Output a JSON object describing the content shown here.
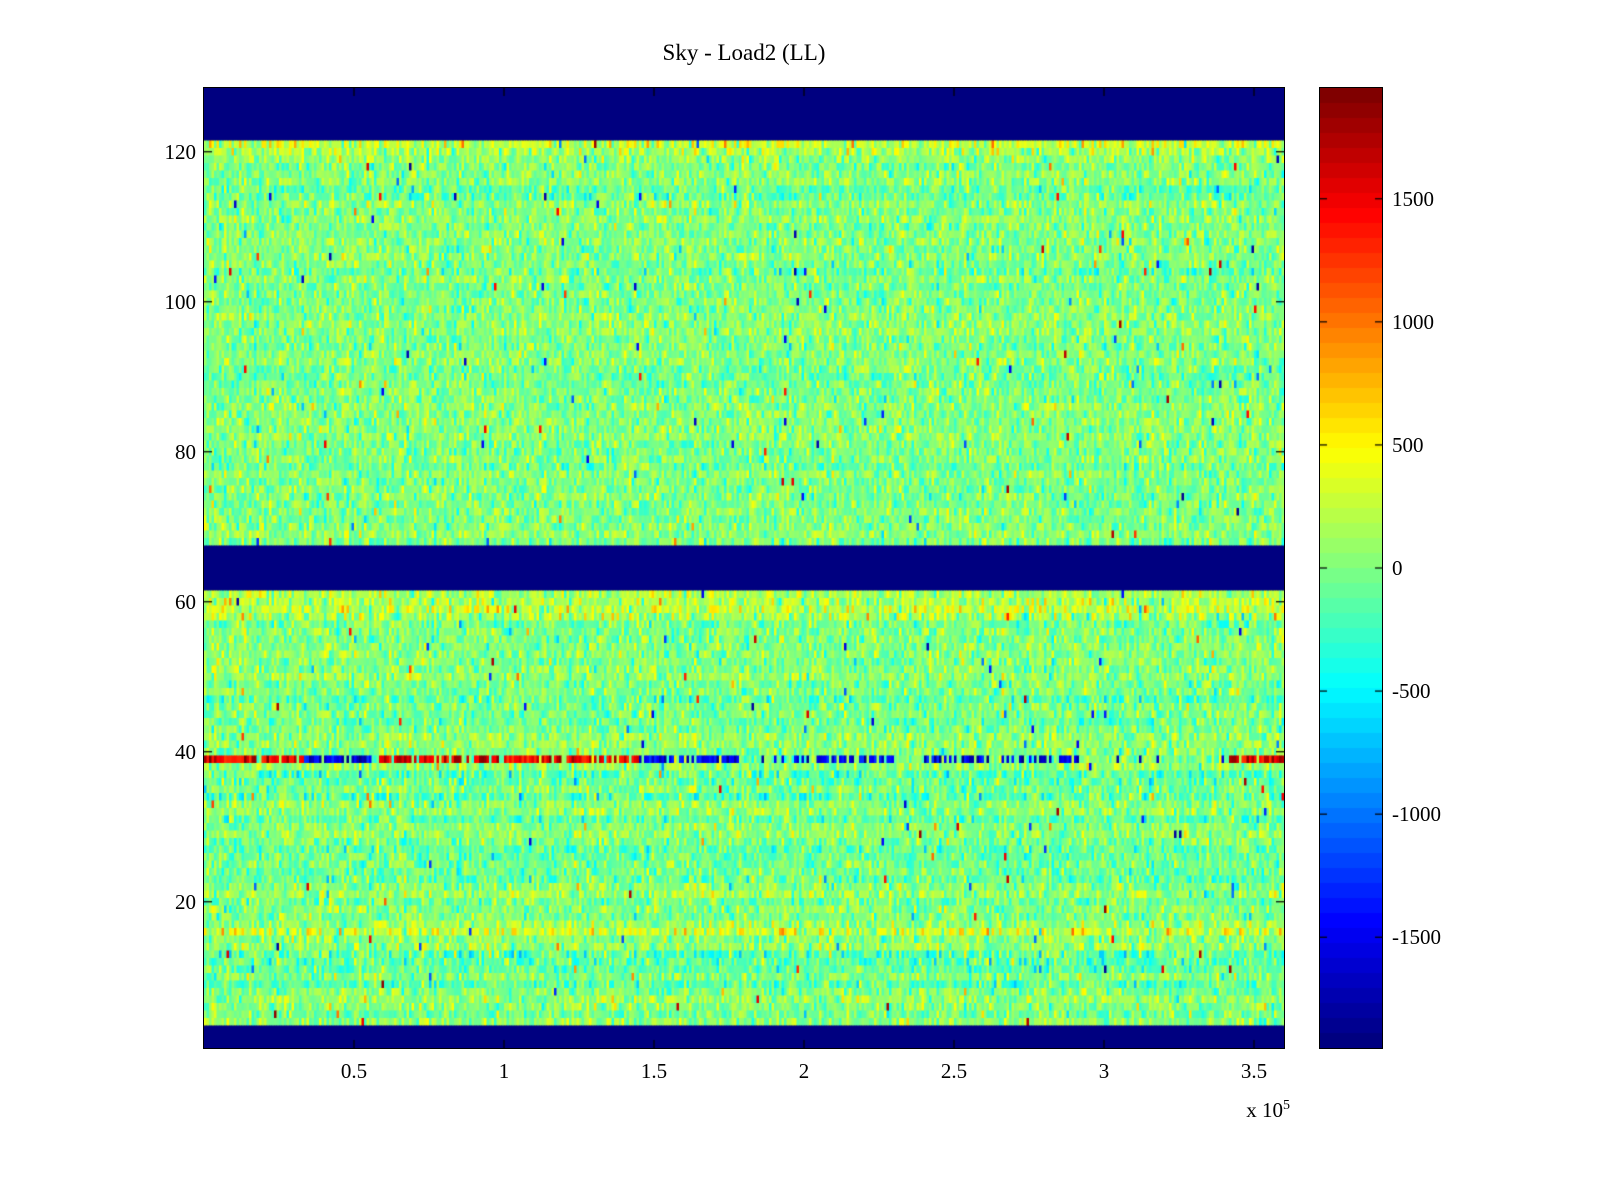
{
  "chart_data": {
    "type": "heatmap",
    "title": "Sky - Load2 (LL)",
    "xlabel": "",
    "ylabel": "",
    "x_axis": {
      "min": 0,
      "max": 360000,
      "unit_scale": 100000,
      "tick_values": [
        0.5,
        1,
        1.5,
        2,
        2.5,
        3,
        3.5
      ],
      "tick_labels": [
        "0.5",
        "1",
        "1.5",
        "2",
        "2.5",
        "3",
        "3.5"
      ],
      "offset_base": "x 10",
      "offset_exp": "5"
    },
    "y_axis": {
      "min": 0.5,
      "max": 128.5,
      "rows": 128,
      "tick_values": [
        20,
        40,
        60,
        80,
        100,
        120
      ],
      "tick_labels": [
        "20",
        "40",
        "60",
        "80",
        "100",
        "120"
      ]
    },
    "colorbar": {
      "colormap": "jet",
      "min": -1950,
      "max": 1950,
      "bands": 64,
      "tick_values": [
        1500,
        1000,
        500,
        0,
        -500,
        -1000,
        -1500
      ],
      "tick_labels": [
        "1500",
        "1000",
        "500",
        "0",
        "-500",
        "-1000",
        "-1500"
      ]
    },
    "heatmap": {
      "cols": 432,
      "noise_std": 200,
      "outlier_prob": 0.005,
      "blank_value": -1950,
      "blank_row_bands": [
        [
          1,
          3
        ],
        [
          62,
          67
        ],
        [
          122,
          128
        ]
      ],
      "row_bias": [
        [
          121,
          260
        ],
        [
          120,
          140
        ],
        [
          60,
          180
        ],
        [
          59,
          240
        ],
        [
          58,
          150
        ],
        [
          16,
          280
        ],
        [
          17,
          100
        ],
        [
          37,
          -140
        ],
        [
          36,
          -100
        ],
        [
          34,
          -160
        ],
        [
          31,
          -120
        ],
        [
          27,
          -130
        ],
        [
          23,
          -110
        ],
        [
          13,
          -150
        ],
        [
          12,
          -120
        ],
        [
          9,
          -130
        ],
        [
          47,
          -120
        ],
        [
          115,
          -110
        ],
        [
          114,
          -90
        ],
        [
          104,
          -80
        ]
      ],
      "rfi_row": {
        "row": 39,
        "min_amp": 1250,
        "max_amp": 1950,
        "segments": [
          [
            0.0,
            0.33,
            1,
            0.85
          ],
          [
            0.33,
            0.56,
            -1,
            0.85
          ],
          [
            0.58,
            1.45,
            1,
            0.8
          ],
          [
            1.45,
            1.78,
            -1,
            0.85
          ],
          [
            1.8,
            2.04,
            -1,
            0.25
          ],
          [
            2.04,
            2.3,
            -1,
            0.8
          ],
          [
            2.38,
            2.95,
            -1,
            0.55
          ],
          [
            3.0,
            3.4,
            -1,
            0.12
          ],
          [
            3.42,
            3.6,
            1,
            0.8
          ]
        ]
      },
      "seed": 20771
    }
  }
}
